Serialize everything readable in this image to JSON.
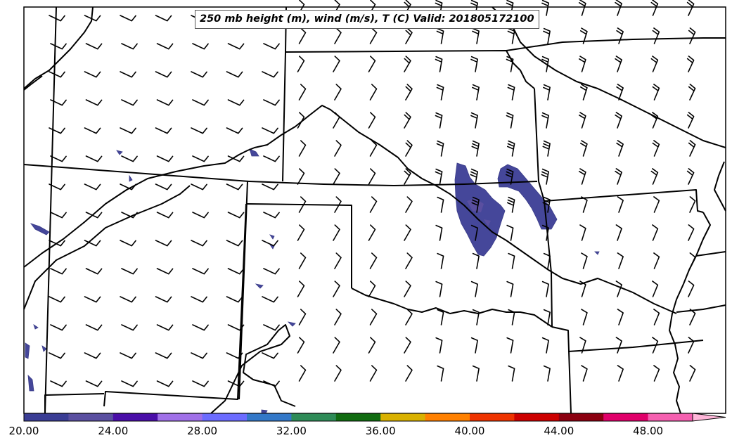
{
  "title": "250 mb height (m), wind (m/s), T (C) Valid: 201805172100",
  "colorbar": {
    "labels": [
      "20.00",
      "24.00",
      "28.00",
      "32.00",
      "36.00",
      "40.00",
      "44.00",
      "48.00"
    ],
    "colors": [
      "#3a3d94",
      "#5a4fa0",
      "#4a0ea8",
      "#a070e8",
      "#6c6cff",
      "#3378c8",
      "#2e8b57",
      "#116b11",
      "#d9b100",
      "#ff8000",
      "#ee3300",
      "#cc0000",
      "#8b0010",
      "#e0006a",
      "#f560b0",
      "#ffb6d9"
    ],
    "extend": "max"
  },
  "colors": {
    "contour_fill": "#45479a",
    "boundary": "#000000",
    "background": "#ffffff"
  },
  "map_features": [
    "state-boundaries",
    "county-lines-none",
    "wind-barbs",
    "temperature-shading"
  ]
}
